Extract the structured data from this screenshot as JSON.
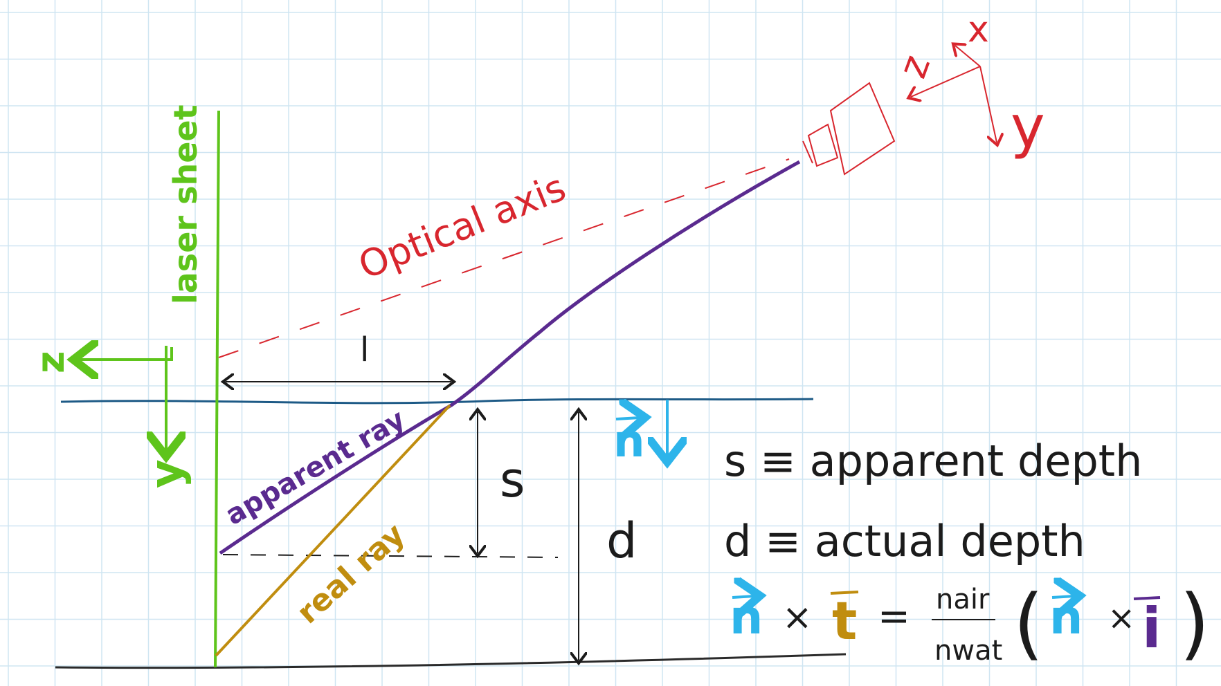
{
  "labels": {
    "laser_sheet": "laser sheet",
    "optical_axis": "Optical axis",
    "ell": "l",
    "s": "s",
    "d": "d",
    "n_vec": "n",
    "apparent_ray": "apparent ray",
    "real_ray": "real ray",
    "z_left": "z",
    "y_left": "y",
    "cam_x": "x",
    "cam_y": "y",
    "cam_z": "z"
  },
  "legend": {
    "line1": "s ≡ apparent depth",
    "line2": "d ≡ actual depth",
    "eq_n1": "n",
    "eq_x1": "×",
    "eq_t": "t",
    "eq_eq": "=",
    "eq_num": "nair",
    "eq_den": "nwat",
    "eq_lp": "(",
    "eq_n2": "n",
    "eq_x2": "×",
    "eq_i": "i",
    "eq_rp": ")"
  },
  "colors": {
    "grid": "#cfe5f2",
    "laser_sheet": "#5ec41b",
    "optical_axis": "#d8262e",
    "water_surface": "#1d5a86",
    "apparent_ray": "#5a2a8f",
    "real_ray": "#c08d0f",
    "normal_vector": "#2db4ea",
    "ink": "#1b1b1b"
  }
}
